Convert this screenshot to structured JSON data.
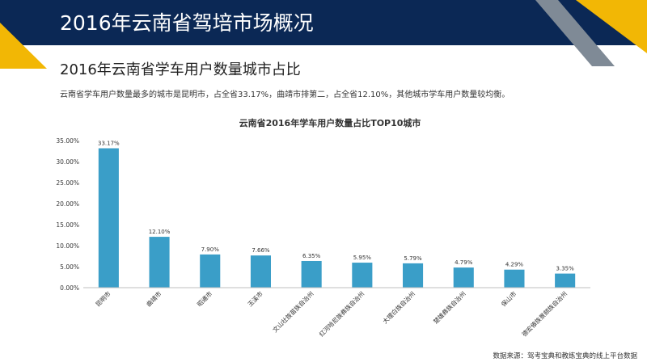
{
  "header": {
    "title": "2016年云南省驾培市场概况"
  },
  "section": {
    "title": "2016年云南省学车用户数量城市占比",
    "summary": "云南省学车用户数量最多的城市是昆明市，占全省33.17%，曲靖市排第二，占全省12.10%，其他城市学车用户数量较均衡。"
  },
  "colors": {
    "header_bg": "#0b2855",
    "accent_yellow": "#f2b705",
    "accent_gray": "#7f8a96",
    "bar": "#3a9ec8"
  },
  "chart_data": {
    "type": "bar",
    "title": "云南省2016年学车用户数量占比TOP10城市",
    "xlabel": "",
    "ylabel": "",
    "categories": [
      "昆明市",
      "曲靖市",
      "昭通市",
      "玉溪市",
      "文山壮族苗族自治州",
      "红河哈尼族彝族自治州",
      "大理白族自治州",
      "楚雄彝族自治州",
      "保山市",
      "德宏傣族景颇族自治州"
    ],
    "values": [
      33.17,
      12.1,
      7.9,
      7.66,
      6.35,
      5.95,
      5.79,
      4.79,
      4.29,
      3.35
    ],
    "value_labels": [
      "33.17%",
      "12.10%",
      "7.90%",
      "7.66%",
      "6.35%",
      "5.95%",
      "5.79%",
      "4.79%",
      "4.29%",
      "3.35%"
    ],
    "ylim": [
      0,
      35
    ],
    "yticks": [
      0,
      5,
      10,
      15,
      20,
      25,
      30,
      35
    ],
    "ytick_labels": [
      "0.00%",
      "5.00%",
      "10.00%",
      "15.00%",
      "20.00%",
      "25.00%",
      "30.00%",
      "35.00%"
    ],
    "grid": false,
    "legend": "none"
  },
  "footer": {
    "source": "数据来源：驾考宝典和教练宝典的线上平台数据"
  }
}
